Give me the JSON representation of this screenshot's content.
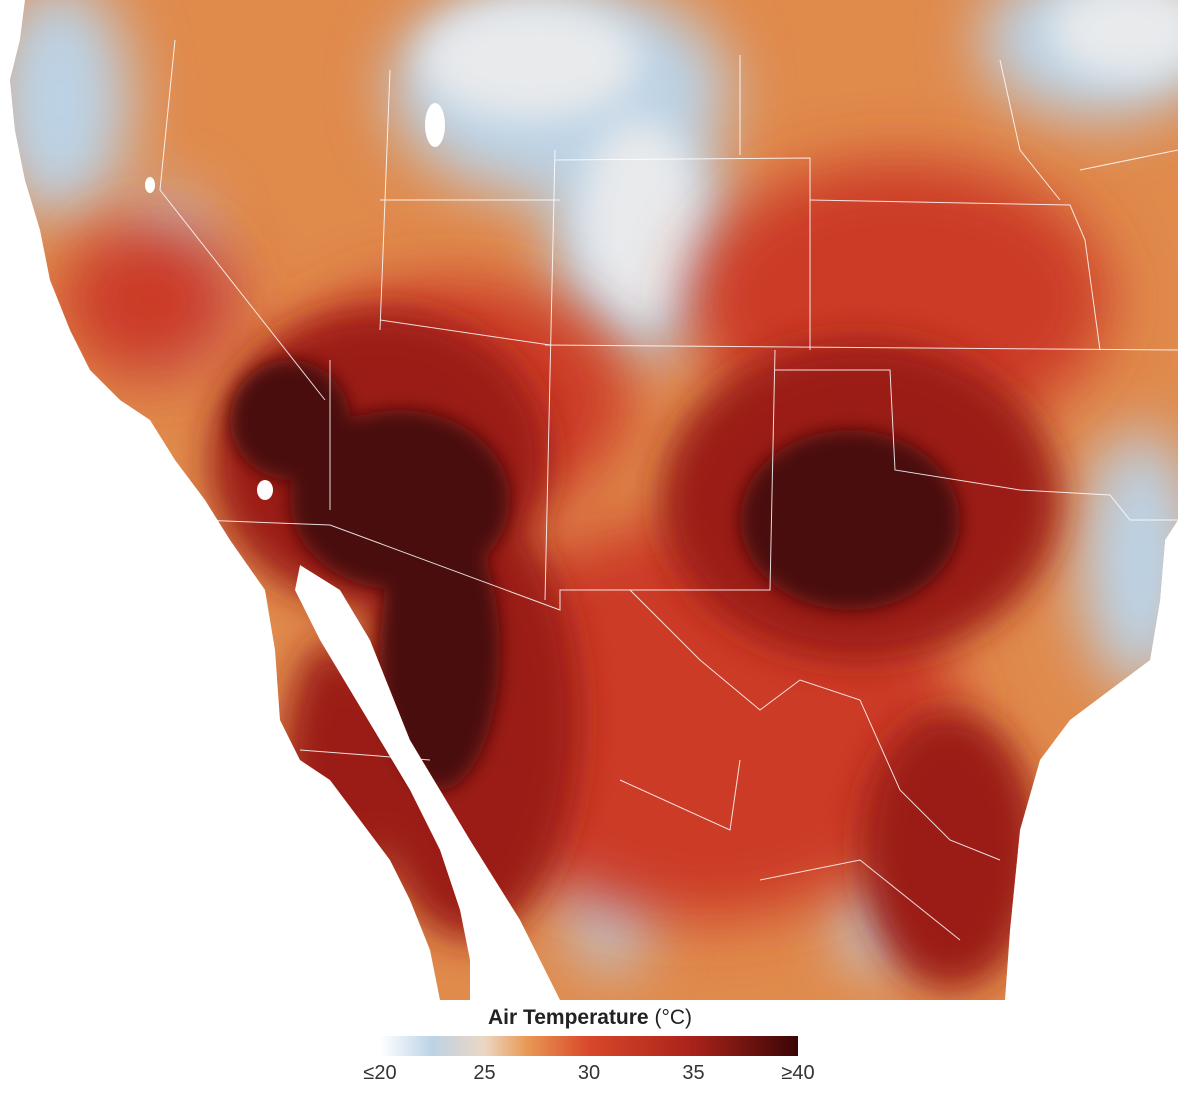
{
  "legend": {
    "title": "Air Temperature",
    "unit": "(°C)",
    "ticks": [
      {
        "label": "≤20",
        "value": 20
      },
      {
        "label": "25",
        "value": 25
      },
      {
        "label": "30",
        "value": 30
      },
      {
        "label": "35",
        "value": 35
      },
      {
        "label": "≥40",
        "value": 40
      }
    ],
    "range": [
      20,
      40
    ],
    "color_stops": [
      {
        "value": 20,
        "color": "#ffffff"
      },
      {
        "value": 22.5,
        "color": "#bcd3e6"
      },
      {
        "value": 25,
        "color": "#ecd6c3"
      },
      {
        "value": 27,
        "color": "#e89a55"
      },
      {
        "value": 30,
        "color": "#d9472a"
      },
      {
        "value": 35,
        "color": "#a8221a"
      },
      {
        "value": 40,
        "color": "#3a0606"
      }
    ]
  },
  "map": {
    "subject": "air-temperature",
    "colors": {
      "ocean": "#ffffff",
      "border": "#ffffff",
      "cool": "#bcd3e6",
      "snow": "#e8eaec",
      "warm": "#e08a4c",
      "hot": "#cc3a26",
      "very_hot": "#9b1b14",
      "extreme": "#4a0808"
    }
  }
}
